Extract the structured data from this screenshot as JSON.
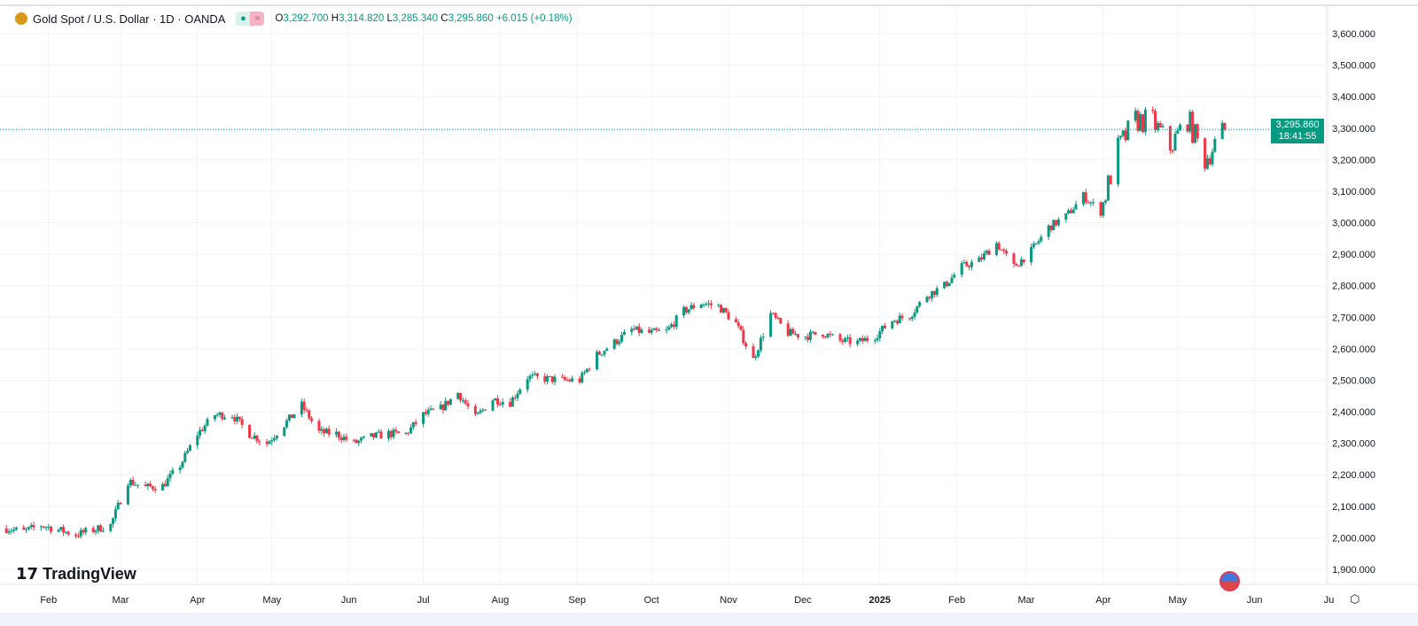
{
  "header": {
    "symbol": "Gold Spot / U.S. Dollar · 1D · OANDA",
    "open_label": "O",
    "open": "3,292.700",
    "high_label": "H",
    "high": "3,314.820",
    "low_label": "L",
    "low": "3,285.340",
    "close_label": "C",
    "close": "3,295.860",
    "change": "+6.015 (+0.18%)",
    "logo_icon": "gold-bars-icon"
  },
  "price_tag": {
    "price": "3,295.860",
    "countdown": "18:41:55"
  },
  "branding": "TradingView",
  "colors": {
    "up": "#089981",
    "down": "#f23645",
    "grid": "#f0f3fa"
  },
  "chart_data": {
    "type": "candlestick",
    "y_ticks": [
      "1,900.000",
      "2,000.000",
      "2,100.000",
      "2,200.000",
      "2,300.000",
      "2,400.000",
      "2,500.000",
      "2,600.000",
      "2,700.000",
      "2,800.000",
      "2,900.000",
      "3,000.000",
      "3,100.000",
      "3,200.000",
      "3,300.000",
      "3,400.000",
      "3,500.000",
      "3,600.000"
    ],
    "ylim": [
      1900,
      3600
    ],
    "x_ticks": [
      [
        "Feb",
        "2024-02-01"
      ],
      [
        "Mar",
        "2024-03-01"
      ],
      [
        "Apr",
        "2024-04-01"
      ],
      [
        "May",
        "2024-05-01"
      ],
      [
        "Jun",
        "2024-06-01"
      ],
      [
        "Jul",
        "2024-07-01"
      ],
      [
        "Aug",
        "2024-08-01"
      ],
      [
        "Sep",
        "2024-09-01"
      ],
      [
        "Oct",
        "2024-10-01"
      ],
      [
        "Nov",
        "2024-11-01"
      ],
      [
        "Dec",
        "2024-12-01"
      ],
      [
        "2025",
        "2025-01-01"
      ],
      [
        "Feb",
        "2025-02-01"
      ],
      [
        "Mar",
        "2025-03-01"
      ],
      [
        "Apr",
        "2025-04-01"
      ],
      [
        "May",
        "2025-05-01"
      ],
      [
        "Jun",
        "2025-06-01"
      ],
      [
        "Ju",
        "2025-07-01"
      ]
    ],
    "weekly_closes": [
      [
        "2024-01-15",
        2030
      ],
      [
        "2024-01-22",
        2020
      ],
      [
        "2024-01-29",
        2040
      ],
      [
        "2024-02-05",
        2025
      ],
      [
        "2024-02-12",
        2010
      ],
      [
        "2024-02-19",
        2025
      ],
      [
        "2024-02-26",
        2040
      ],
      [
        "2024-03-04",
        2180
      ],
      [
        "2024-03-11",
        2160
      ],
      [
        "2024-03-18",
        2165
      ],
      [
        "2024-03-25",
        2230
      ],
      [
        "2024-04-01",
        2330
      ],
      [
        "2024-04-08",
        2390
      ],
      [
        "2024-04-15",
        2390
      ],
      [
        "2024-04-22",
        2330
      ],
      [
        "2024-04-29",
        2300
      ],
      [
        "2024-05-06",
        2360
      ],
      [
        "2024-05-13",
        2420
      ],
      [
        "2024-05-20",
        2335
      ],
      [
        "2024-05-27",
        2330
      ],
      [
        "2024-06-03",
        2300
      ],
      [
        "2024-06-10",
        2320
      ],
      [
        "2024-06-17",
        2330
      ],
      [
        "2024-06-24",
        2330
      ],
      [
        "2024-07-01",
        2390
      ],
      [
        "2024-07-08",
        2410
      ],
      [
        "2024-07-15",
        2460
      ],
      [
        "2024-07-22",
        2380
      ],
      [
        "2024-07-29",
        2440
      ],
      [
        "2024-08-05",
        2430
      ],
      [
        "2024-08-12",
        2510
      ],
      [
        "2024-08-19",
        2505
      ],
      [
        "2024-08-26",
        2500
      ],
      [
        "2024-09-02",
        2500
      ],
      [
        "2024-09-09",
        2580
      ],
      [
        "2024-09-16",
        2620
      ],
      [
        "2024-09-23",
        2660
      ],
      [
        "2024-09-30",
        2650
      ],
      [
        "2024-10-07",
        2655
      ],
      [
        "2024-10-14",
        2720
      ],
      [
        "2024-10-21",
        2745
      ],
      [
        "2024-10-28",
        2735
      ],
      [
        "2024-11-04",
        2680
      ],
      [
        "2024-11-11",
        2565
      ],
      [
        "2024-11-18",
        2710
      ],
      [
        "2024-11-25",
        2650
      ],
      [
        "2024-12-02",
        2640
      ],
      [
        "2024-12-09",
        2650
      ],
      [
        "2024-12-16",
        2625
      ],
      [
        "2024-12-23",
        2620
      ],
      [
        "2024-12-30",
        2640
      ],
      [
        "2025-01-06",
        2690
      ],
      [
        "2025-01-13",
        2705
      ],
      [
        "2025-01-20",
        2770
      ],
      [
        "2025-01-27",
        2800
      ],
      [
        "2025-02-03",
        2860
      ],
      [
        "2025-02-10",
        2880
      ],
      [
        "2025-02-17",
        2935
      ],
      [
        "2025-02-24",
        2860
      ],
      [
        "2025-03-03",
        2910
      ],
      [
        "2025-03-10",
        2985
      ],
      [
        "2025-03-17",
        3020
      ],
      [
        "2025-03-24",
        3085
      ],
      [
        "2025-03-31",
        3035
      ],
      [
        "2025-04-07",
        3235
      ],
      [
        "2025-04-14",
        3325
      ],
      [
        "2025-04-21",
        3320
      ],
      [
        "2025-04-28",
        3240
      ],
      [
        "2025-05-05",
        3330
      ],
      [
        "2025-05-12",
        3200
      ],
      [
        "2025-05-20",
        3295.86
      ]
    ],
    "last_price": 3295.86,
    "grid": true
  }
}
